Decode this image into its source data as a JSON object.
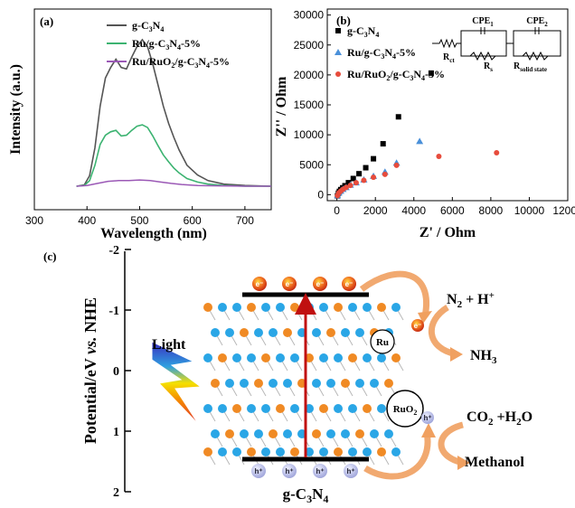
{
  "chart_data": [
    {
      "type": "line",
      "panel_label": "(a)",
      "xlabel": "Wavelength (nm)",
      "ylabel": "Intensity (a.u.)",
      "xlim": [
        300,
        750
      ],
      "x_ticks": [
        "300",
        "400",
        "500",
        "600",
        "700"
      ],
      "y_ticks": [],
      "legend_position": "top-right",
      "series": [
        {
          "name": "g-C3N4",
          "color": "#555555",
          "x": [
            380,
            395,
            405,
            415,
            425,
            435,
            445,
            455,
            465,
            475,
            485,
            495,
            505,
            515,
            525,
            535,
            545,
            555,
            565,
            575,
            590,
            610,
            630,
            660,
            700,
            750
          ],
          "y": [
            0,
            0.2,
            1.5,
            5.5,
            11.5,
            15.5,
            17.0,
            18.2,
            17.0,
            16.8,
            18.5,
            20.0,
            21.0,
            20.0,
            17.5,
            14.5,
            11.5,
            9.0,
            7.0,
            5.2,
            3.0,
            1.6,
            0.8,
            0.3,
            0.1,
            0
          ]
        },
        {
          "name": "Ru/g-C3N4-5%",
          "color": "#3cb371",
          "x": [
            380,
            395,
            405,
            415,
            425,
            435,
            445,
            455,
            465,
            475,
            485,
            495,
            505,
            515,
            525,
            535,
            545,
            555,
            565,
            575,
            590,
            610,
            630,
            660,
            700,
            750
          ],
          "y": [
            0,
            0.1,
            0.8,
            3.0,
            6.0,
            7.3,
            7.8,
            8.0,
            7.2,
            7.3,
            8.0,
            8.6,
            8.8,
            8.4,
            7.2,
            5.8,
            4.5,
            3.5,
            2.6,
            1.9,
            1.1,
            0.6,
            0.3,
            0.1,
            0,
            0
          ]
        },
        {
          "name": "Ru/RuO2/g-C3N4-5%",
          "color": "#9b59b6",
          "x": [
            380,
            400,
            420,
            440,
            460,
            480,
            500,
            520,
            540,
            560,
            580,
            610,
            650,
            700,
            750
          ],
          "y": [
            0,
            0.1,
            0.4,
            0.7,
            0.8,
            0.8,
            0.9,
            0.8,
            0.6,
            0.4,
            0.25,
            0.1,
            0.05,
            0,
            0
          ]
        }
      ],
      "legend_labels": [
        {
          "main": "g-C",
          "sub1": "3",
          "mid": "N",
          "sub2": "4",
          "tail": ""
        },
        {
          "main": "Ru/g-C",
          "sub1": "3",
          "mid": "N",
          "sub2": "4",
          "tail": "-5%"
        },
        {
          "main": "Ru/RuO",
          "sub0": "2",
          "pre": "/g-C",
          "sub1": "3",
          "mid": "N",
          "sub2": "4",
          "tail": "-5%"
        }
      ]
    },
    {
      "type": "scatter",
      "panel_label": "(b)",
      "xlabel": "Z' / Ohm",
      "ylabel": "Z'' / Ohm",
      "xlim": [
        -500,
        12000
      ],
      "ylim": [
        -1000,
        31000
      ],
      "x_ticks": [
        0,
        2000,
        4000,
        6000,
        8000,
        10000,
        12000
      ],
      "y_ticks": [
        0,
        5000,
        10000,
        15000,
        20000,
        25000,
        30000
      ],
      "legend_position": "top-left",
      "series": [
        {
          "name": "g-C3N4",
          "color": "#000000",
          "marker": "square",
          "x": [
            30,
            80,
            130,
            200,
            300,
            420,
            600,
            850,
            1150,
            1500,
            1900,
            2400,
            3200,
            4900
          ],
          "y": [
            -200,
            250,
            550,
            850,
            1150,
            1500,
            2000,
            2700,
            3500,
            4500,
            6000,
            8500,
            13000,
            20300
          ]
        },
        {
          "name": "Ru/g-C3N4-5%",
          "color": "#4a90d9",
          "marker": "triangle",
          "x": [
            30,
            100,
            200,
            320,
            480,
            700,
            1000,
            1400,
            1900,
            2500,
            3100,
            4300
          ],
          "y": [
            -150,
            300,
            600,
            900,
            1200,
            1600,
            2000,
            2500,
            3100,
            3800,
            5300,
            8900
          ]
        },
        {
          "name": "Ru/RuO2/g-C3N4-5%",
          "color": "#e74c3c",
          "marker": "circle",
          "x": [
            30,
            100,
            200,
            320,
            480,
            700,
            1000,
            1400,
            1900,
            2500,
            3100,
            5300,
            8300
          ],
          "y": [
            -150,
            300,
            600,
            900,
            1200,
            1550,
            2000,
            2400,
            2900,
            3400,
            4900,
            6400,
            7000
          ]
        }
      ],
      "circuit": {
        "labels": [
          "CPE1",
          "CPE2",
          "Rct",
          "Rs",
          "Rsolid state"
        ]
      }
    }
  ],
  "diagram": {
    "panel_label": "(c)",
    "ylabel": "Potential/eV vs. NHE",
    "y_ticks": [
      "-2",
      "-1",
      "0",
      "1",
      "2"
    ],
    "light_label": "Light",
    "material_label": "g-C3N4",
    "electron_symbol": "e⁻",
    "hole_symbol": "h⁺",
    "ru_label": "Ru",
    "ruo2_label": "RuO2",
    "product_top_left": "N2 + H+",
    "product_top_right": "NH3",
    "product_bottom_left": "CO2 +H2O",
    "product_bottom_right": "Methanol"
  }
}
